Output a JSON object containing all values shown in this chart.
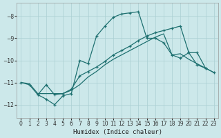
{
  "background_color": "#cce8ea",
  "grid_color": "#aacfd2",
  "line_color": "#1e7070",
  "xlabel": "Humidex (Indice chaleur)",
  "ylim": [
    -12.6,
    -7.4
  ],
  "xlim": [
    -0.5,
    23.5
  ],
  "yticks": [
    -12,
    -11,
    -10,
    -9,
    -8
  ],
  "xticks": [
    0,
    1,
    2,
    3,
    4,
    5,
    6,
    7,
    8,
    9,
    10,
    11,
    12,
    13,
    14,
    15,
    16,
    17,
    18,
    19,
    20,
    21,
    22,
    23
  ],
  "curve1_x": [
    0,
    1,
    2,
    3,
    4,
    5,
    6,
    7,
    8,
    9,
    10,
    11,
    12,
    13,
    14,
    15,
    16,
    17,
    18,
    19,
    20,
    21,
    22
  ],
  "curve1_y": [
    -11.0,
    -11.1,
    -11.55,
    -11.75,
    -12.0,
    -11.6,
    -11.5,
    -10.0,
    -10.15,
    -8.9,
    -8.45,
    -8.05,
    -7.9,
    -7.85,
    -7.8,
    -9.0,
    -9.0,
    -9.2,
    -9.75,
    -9.9,
    -9.65,
    -10.2,
    -10.35
  ],
  "curve2_x": [
    0,
    1,
    2,
    3,
    4,
    5,
    6,
    7,
    8,
    9,
    10,
    11,
    12,
    13,
    14,
    15,
    16,
    17,
    18,
    19,
    20,
    21,
    22,
    23
  ],
  "curve2_y": [
    -11.0,
    -11.05,
    -11.5,
    -11.5,
    -11.5,
    -11.5,
    -11.35,
    -11.1,
    -10.75,
    -10.5,
    -10.2,
    -9.95,
    -9.75,
    -9.55,
    -9.35,
    -9.15,
    -8.95,
    -8.8,
    -9.75,
    -9.7,
    -9.95,
    -10.15,
    -10.35,
    -10.55
  ],
  "curve3_x": [
    2,
    3,
    4,
    5,
    6,
    7,
    8,
    9,
    10,
    11,
    12,
    13,
    14,
    15,
    16,
    17,
    18,
    19,
    20,
    21,
    22,
    23
  ],
  "curve3_y": [
    -11.55,
    -11.1,
    -11.55,
    -11.5,
    -11.3,
    -10.7,
    -10.5,
    -10.3,
    -10.05,
    -9.75,
    -9.55,
    -9.35,
    -9.1,
    -8.9,
    -8.75,
    -8.65,
    -8.55,
    -8.45,
    -9.65,
    -9.65,
    -10.35,
    -10.55
  ]
}
